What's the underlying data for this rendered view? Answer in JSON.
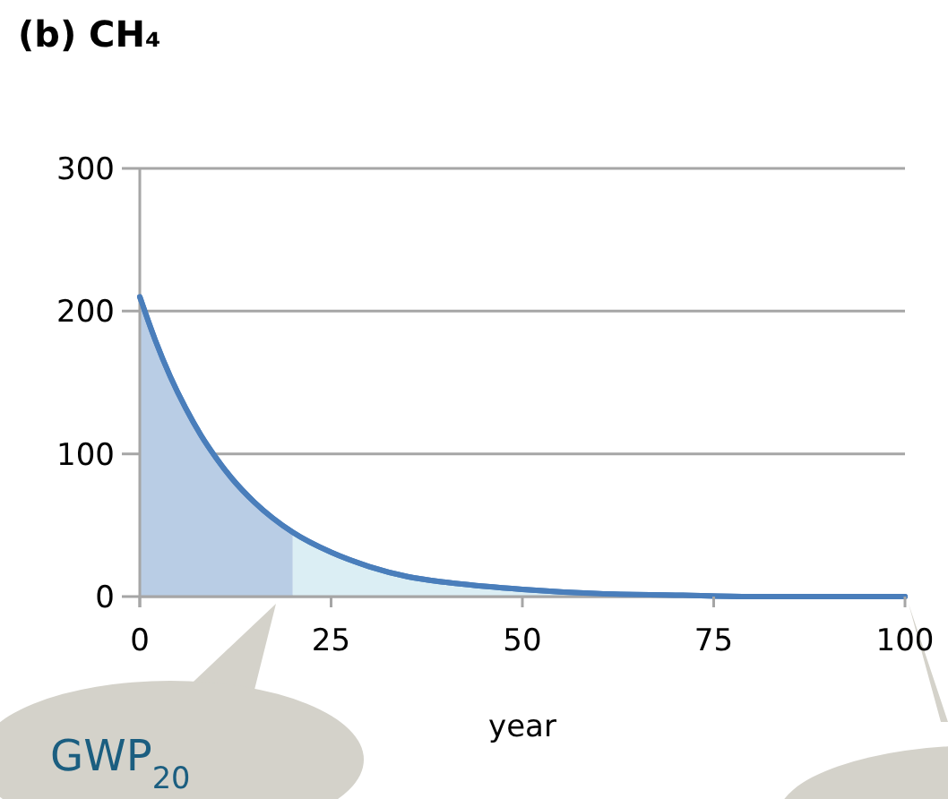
{
  "chart_data": {
    "type": "area",
    "title": "(b) CH₄",
    "xlabel": "year",
    "xlim": [
      0,
      100
    ],
    "xticks": [
      0,
      25,
      50,
      75,
      100
    ],
    "ylim": [
      0,
      300
    ],
    "yticks": [
      0,
      100,
      200,
      300
    ],
    "grid": "y",
    "series": [
      {
        "color": "#b9cde5",
        "x": [
          0,
          2,
          4,
          6,
          8,
          10,
          12,
          15,
          20
        ],
        "values": [
          210,
          180,
          154,
          132,
          113,
          97,
          83,
          66,
          45
        ]
      },
      {
        "color": "#dbeef4",
        "x": [
          20,
          25,
          30,
          35,
          40,
          50,
          60,
          70,
          80,
          90,
          100
        ],
        "values": [
          45,
          31,
          21,
          14,
          10,
          5,
          2,
          1,
          0,
          0,
          0
        ]
      },
      {
        "type": "line",
        "color": "#4a7ebb",
        "x": [
          0,
          2,
          4,
          6,
          8,
          10,
          12,
          15,
          20,
          25,
          30,
          35,
          40,
          50,
          60,
          70,
          80,
          90,
          100
        ],
        "values": [
          210,
          180,
          154,
          132,
          113,
          97,
          83,
          66,
          45,
          31,
          21,
          14,
          10,
          5,
          2,
          1,
          0,
          0,
          0
        ]
      }
    ],
    "annotations": [
      "GWP$_{20}$"
    ]
  }
}
